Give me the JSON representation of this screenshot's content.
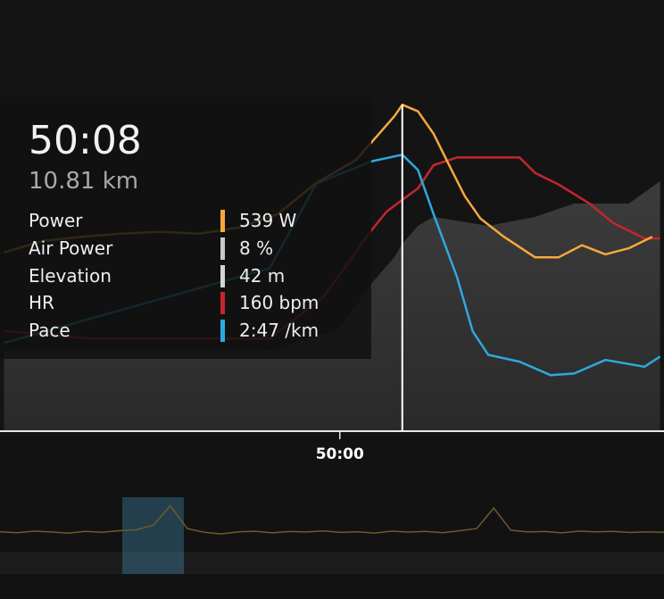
{
  "chart_data": {
    "type": "line",
    "xlim": [
      2956.5,
      3041.5
    ],
    "xticks": [
      {
        "value": 3000,
        "label": "50:00"
      }
    ],
    "cursor_x": 3008,
    "series": [
      {
        "name": "Elevation",
        "kind": "area",
        "color": "#3a3a3a",
        "ylim": [
          0,
          95
        ],
        "x": [
          2957,
          2991,
          3000,
          3004,
          3007,
          3008,
          3010,
          3012,
          3019,
          3025,
          3030,
          3037,
          3041
        ],
        "values": [
          18,
          18,
          23,
          33,
          39,
          42,
          46,
          48,
          46,
          48,
          51,
          51,
          56
        ]
      },
      {
        "name": "HR",
        "color": "#c4262e",
        "ylim": [
          100,
          210
        ],
        "x": [
          2957,
          2968,
          2991,
          2998,
          3004,
          3006,
          3008,
          3010,
          3012,
          3015,
          3023,
          3025,
          3028,
          3032,
          3035,
          3039,
          3041
        ],
        "values": [
          126,
          124,
          124,
          135,
          152,
          157,
          160,
          163,
          169,
          171,
          171,
          167,
          164,
          159,
          154,
          150,
          150
        ]
      },
      {
        "name": "Pace",
        "color": "#2ea9dd",
        "ylim": [
          330,
          80
        ],
        "x": [
          2957,
          2991,
          2997,
          3004,
          3007,
          3008,
          3010,
          3012,
          3015,
          3017,
          3019,
          3023,
          3027,
          3030,
          3034,
          3039,
          3041
        ],
        "values": [
          278,
          234,
          184,
          171,
          168,
          167,
          176,
          202,
          239,
          271,
          285,
          289,
          297,
          296,
          288,
          292,
          286
        ]
      },
      {
        "name": "Power",
        "color": "#f5a93b",
        "ylim": [
          0,
          700
        ],
        "x": [
          2957,
          2962,
          2967,
          2972,
          2977,
          2982,
          2987,
          2992,
          2997,
          3002,
          3004,
          3007,
          3008,
          3010,
          3012,
          3014,
          3016,
          3018,
          3021,
          3025,
          3028,
          3031,
          3034,
          3037,
          3040
        ],
        "values": [
          295,
          314,
          321,
          326,
          329,
          326,
          336,
          358,
          410,
          447,
          476,
          520,
          539,
          528,
          491,
          439,
          388,
          351,
          321,
          287,
          287,
          307,
          292,
          302,
          321
        ]
      }
    ],
    "tooltip": {
      "time": "50:08",
      "distance": "10.81 km",
      "rows": [
        {
          "name": "Power",
          "label": "539 W",
          "color": "#f5a93b"
        },
        {
          "name": "Air Power",
          "label": "8 %",
          "color": "#c9c9c9"
        },
        {
          "name": "Elevation",
          "label": "42 m",
          "color": "#d4d4d4"
        },
        {
          "name": "HR",
          "label": "160 bpm",
          "color": "#c4262e"
        },
        {
          "name": "Pace",
          "label": "2:47 /km",
          "color": "#2ea9dd"
        }
      ]
    },
    "overview": {
      "color": "#6e5a2c",
      "ylim": [
        0,
        760
      ],
      "values": [
        300,
        292,
        306,
        298,
        287,
        303,
        295,
        310,
        318,
        360,
        540,
        330,
        296,
        280,
        300,
        305,
        290,
        302,
        298,
        308,
        294,
        300,
        288,
        306,
        297,
        303,
        292,
        310,
        330,
        520,
        315,
        298,
        302,
        290,
        306,
        299,
        304,
        293,
        300,
        296
      ]
    }
  }
}
